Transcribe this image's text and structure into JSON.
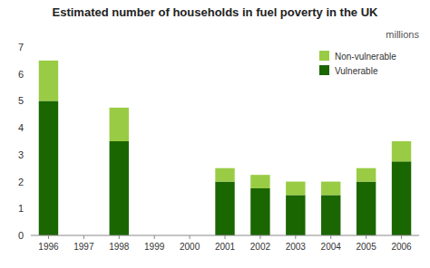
{
  "chart_data": {
    "type": "bar",
    "stacked": true,
    "title": "Estimated number of households in fuel poverty in the UK",
    "subtitle": "millions",
    "categories": [
      "1996",
      "1997",
      "1998",
      "1999",
      "2000",
      "2001",
      "2002",
      "2003",
      "2004",
      "2005",
      "2006"
    ],
    "series": [
      {
        "name": "Vulnerable",
        "color": "#1a6600",
        "values": [
          5.0,
          0,
          3.5,
          0,
          0,
          2.0,
          1.75,
          1.5,
          1.5,
          2.0,
          2.75
        ]
      },
      {
        "name": "Non-vulnerable",
        "color": "#99cc44",
        "values": [
          1.5,
          0,
          1.25,
          0,
          0,
          0.5,
          0.5,
          0.5,
          0.5,
          0.5,
          0.75
        ]
      }
    ],
    "ylim": [
      0,
      7
    ],
    "yticks": [
      0,
      1,
      2,
      3,
      4,
      5,
      6,
      7
    ],
    "grid": false,
    "legend": "upper right"
  }
}
